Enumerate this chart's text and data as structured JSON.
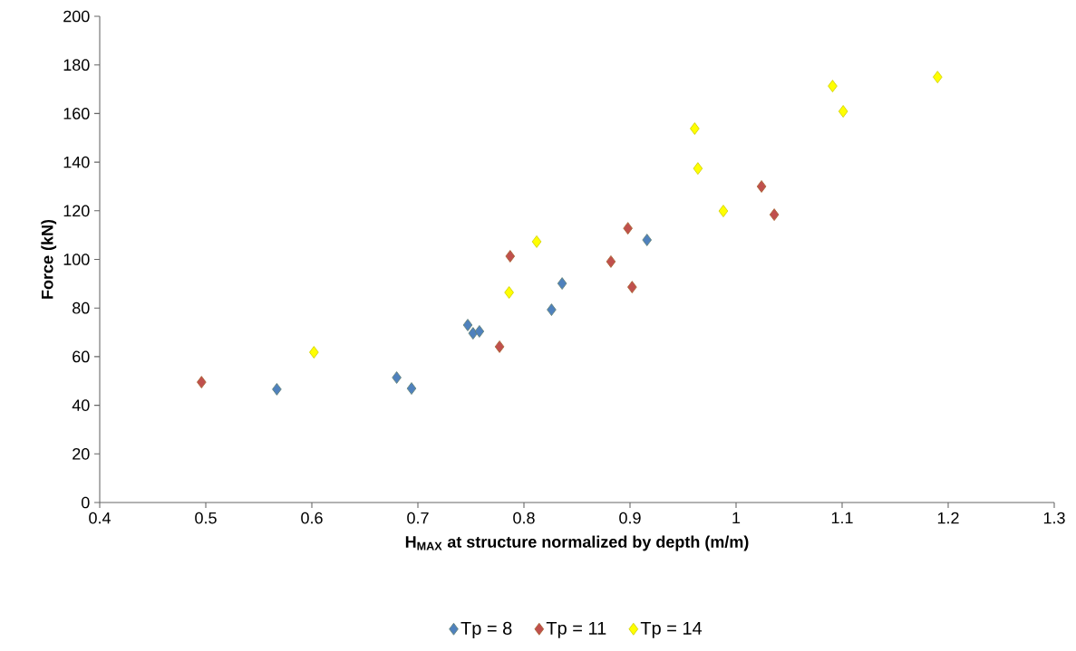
{
  "chart_data": {
    "type": "scatter",
    "xlabel": "H$_{MAX}$ at structure normalized by depth (m/m)",
    "ylabel": "Force (kN)",
    "xlim": [
      0.4,
      1.3
    ],
    "xticks": [
      0.4,
      0.5,
      0.6,
      0.7,
      0.8,
      0.9,
      1,
      1.1,
      1.2,
      1.3
    ],
    "ylim": [
      0,
      200
    ],
    "yticks": [
      0,
      20,
      40,
      60,
      80,
      100,
      120,
      140,
      160,
      180,
      200
    ],
    "grid": false,
    "legend": "bottom",
    "marker": "diamond",
    "series": [
      {
        "name": "Tp = 8",
        "color": "#4f81bd",
        "x": [
          0.567,
          0.68,
          0.694,
          0.747,
          0.752,
          0.758,
          0.826,
          0.836,
          0.916
        ],
        "values": [
          46.6,
          51.4,
          46.9,
          73.0,
          69.6,
          70.4,
          79.3,
          90.1,
          108.0
        ]
      },
      {
        "name": "Tp = 11",
        "color": "#c0504d",
        "x": [
          0.496,
          0.777,
          0.787,
          0.882,
          0.898,
          0.902,
          0.988,
          1.024,
          1.036
        ],
        "values": [
          49.5,
          64.1,
          101.3,
          99.1,
          112.8,
          88.6,
          null,
          130.0,
          118.4
        ]
      },
      {
        "name": "Tp = 14",
        "color": "#ffff00",
        "x": [
          0.602,
          0.786,
          0.812,
          0.961,
          0.964,
          0.988,
          1.091,
          1.101,
          1.19
        ],
        "values": [
          61.8,
          86.4,
          107.3,
          153.8,
          137.4,
          119.9,
          171.3,
          160.9,
          175.0
        ]
      }
    ]
  }
}
